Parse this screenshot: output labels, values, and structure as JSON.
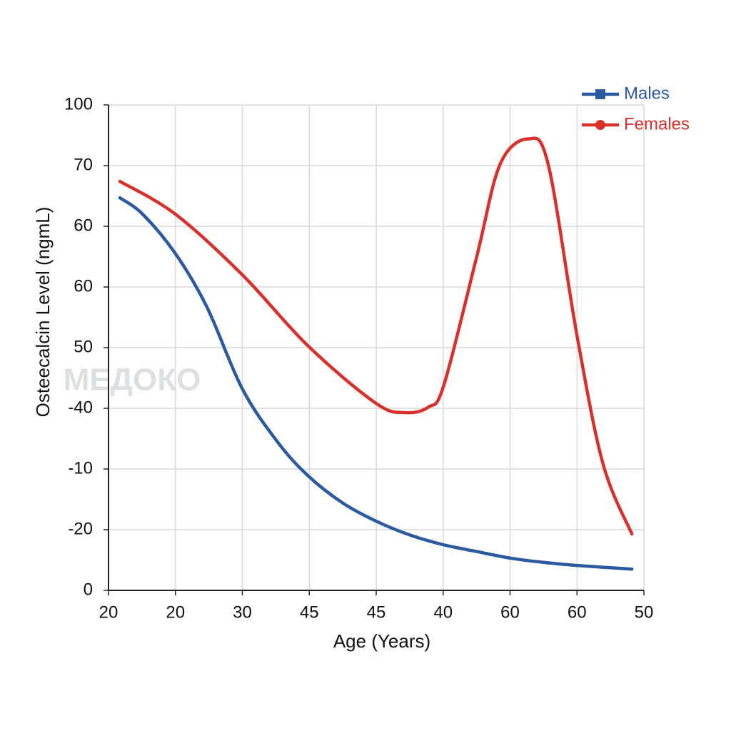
{
  "chart_data": {
    "type": "line",
    "xlabel": "Age (Years)",
    "ylabel": "Osteecalcin Level (ngmL)",
    "watermark": "МЕДОКО",
    "xlim": [
      0,
      8
    ],
    "ylim": [
      0,
      8
    ],
    "xticks": [
      {
        "value": 0,
        "label": "20"
      },
      {
        "value": 1,
        "label": "20"
      },
      {
        "value": 2,
        "label": "30"
      },
      {
        "value": 3,
        "label": "45"
      },
      {
        "value": 4,
        "label": "45"
      },
      {
        "value": 5,
        "label": "40"
      },
      {
        "value": 6,
        "label": "60"
      },
      {
        "value": 7,
        "label": "60"
      },
      {
        "value": 8,
        "label": "50"
      }
    ],
    "yticks": [
      {
        "value": 0,
        "label": "0"
      },
      {
        "value": 1,
        "label": "-20"
      },
      {
        "value": 2,
        "label": "-10"
      },
      {
        "value": 3,
        "label": "-40"
      },
      {
        "value": 4,
        "label": "50"
      },
      {
        "value": 5,
        "label": "60"
      },
      {
        "value": 6,
        "label": "60"
      },
      {
        "value": 7,
        "label": "70"
      },
      {
        "value": 8,
        "label": "100"
      }
    ],
    "grid": true,
    "legend": "upper right",
    "series": [
      {
        "name": "Males",
        "color": "#2b5aa0",
        "marker": "square",
        "x": [
          0.17,
          0.51,
          1.0,
          1.47,
          2.0,
          2.53,
          2.99,
          3.5,
          4.0,
          4.51,
          5.01,
          5.5,
          6.01,
          6.51,
          7.0,
          7.82
        ],
        "values": [
          6.47,
          6.2,
          5.55,
          4.67,
          3.32,
          2.44,
          1.88,
          1.44,
          1.14,
          0.91,
          0.75,
          0.64,
          0.53,
          0.46,
          0.41,
          0.35
        ]
      },
      {
        "name": "Females",
        "color": "#d9302c",
        "marker": "circle",
        "x": [
          0.17,
          1.0,
          2.0,
          2.99,
          4.0,
          4.43,
          4.78,
          5.01,
          5.5,
          5.85,
          6.27,
          6.57,
          7.0,
          7.39,
          7.82
        ],
        "values": [
          6.74,
          6.2,
          5.2,
          4.02,
          3.08,
          2.93,
          3.02,
          3.38,
          5.49,
          7.02,
          7.44,
          7.02,
          4.2,
          2.08,
          0.93
        ]
      }
    ]
  }
}
